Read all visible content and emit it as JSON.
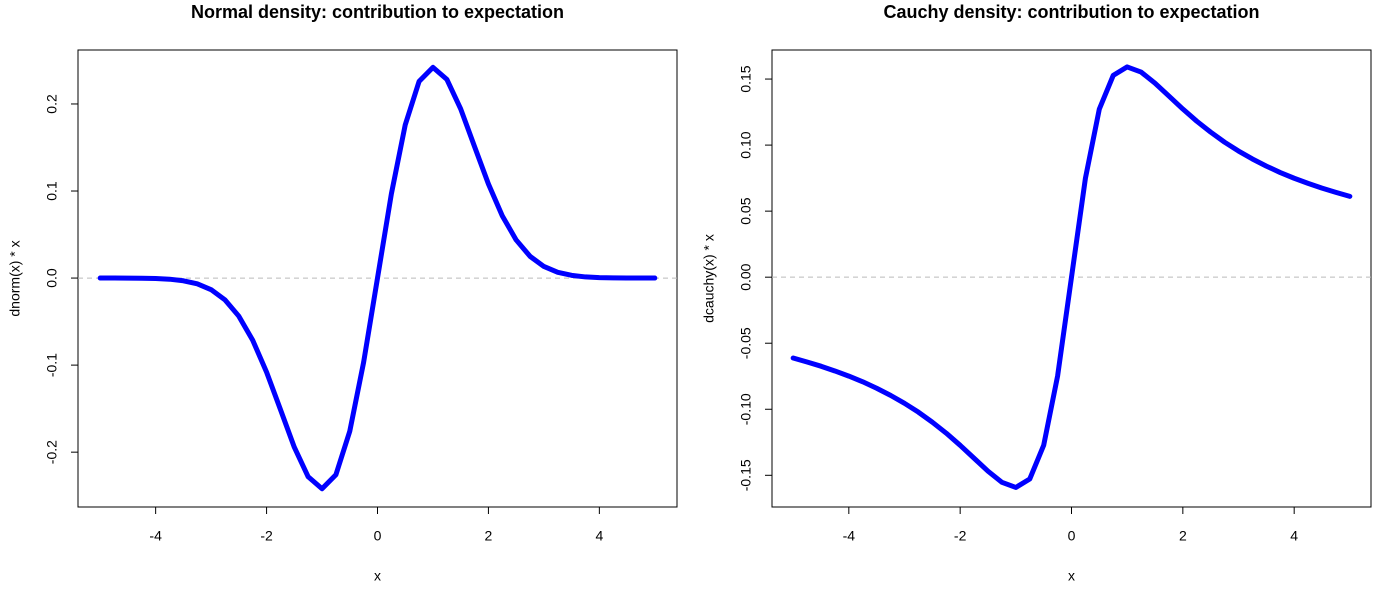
{
  "chart_data": [
    {
      "type": "line",
      "title": "Normal density: contribution to expectation",
      "x_label": "x",
      "y_label": "dnorm(x) * x",
      "x": [
        -5,
        -4.75,
        -4.5,
        -4.25,
        -4,
        -3.75,
        -3.5,
        -3.25,
        -3,
        -2.75,
        -2.5,
        -2.25,
        -2,
        -1.75,
        -1.5,
        -1.25,
        -1,
        -0.75,
        -0.5,
        -0.25,
        0,
        0.25,
        0.5,
        0.75,
        1,
        1.25,
        1.5,
        1.75,
        2,
        2.25,
        2.5,
        2.75,
        3,
        3.25,
        3.5,
        3.75,
        4,
        4.25,
        4.5,
        4.75,
        5
      ],
      "series": [
        {
          "color": "#0000ff",
          "values": [
            0,
            0,
            -0.0001,
            -0.0002,
            -0.0005,
            -0.0013,
            -0.0031,
            -0.0066,
            -0.0133,
            -0.025,
            -0.0438,
            -0.0714,
            -0.108,
            -0.151,
            -0.1943,
            -0.2283,
            -0.242,
            -0.2259,
            -0.176,
            -0.0967,
            0,
            0.0967,
            0.176,
            0.2259,
            0.242,
            0.2283,
            0.1943,
            0.151,
            0.108,
            0.0714,
            0.0438,
            0.025,
            0.0133,
            0.0066,
            0.0031,
            0.0013,
            0.0005,
            0.0002,
            0.0001,
            0,
            0
          ]
        }
      ],
      "xlim": [
        -5.4,
        5.4
      ],
      "xticks": [
        -4,
        -2,
        0,
        2,
        4
      ],
      "ylim": [
        -0.263,
        0.262
      ],
      "yticks": [
        -0.2,
        -0.1,
        {
          "value": 0,
          "label": "0.0"
        },
        0.1,
        0.2
      ],
      "reference_line": 0
    },
    {
      "type": "line",
      "title": "Cauchy density: contribution to expectation",
      "x_label": "x",
      "y_label": "dcauchy(x) * x",
      "x": [
        -5,
        -4.75,
        -4.5,
        -4.25,
        -4,
        -3.75,
        -3.5,
        -3.25,
        -3,
        -2.75,
        -2.5,
        -2.25,
        -2,
        -1.75,
        -1.5,
        -1.25,
        -1,
        -0.75,
        -0.5,
        -0.25,
        0,
        0.25,
        0.5,
        0.75,
        1,
        1.25,
        1.5,
        1.75,
        2,
        2.25,
        2.5,
        2.75,
        3,
        3.25,
        3.5,
        3.75,
        4,
        4.25,
        4.5,
        4.75,
        5
      ],
      "series": [
        {
          "color": "#0000ff",
          "values": [
            -0.0612,
            -0.0642,
            -0.0674,
            -0.071,
            -0.0749,
            -0.0792,
            -0.0841,
            -0.0895,
            -0.0955,
            -0.1022,
            -0.1098,
            -0.1181,
            -0.1273,
            -0.1371,
            -0.1469,
            -0.1553,
            -0.1592,
            -0.1528,
            -0.1273,
            -0.0749,
            0,
            0.0749,
            0.1273,
            0.1528,
            0.1592,
            0.1553,
            0.1469,
            0.1371,
            0.1273,
            0.1181,
            0.1098,
            0.1022,
            0.0955,
            0.0895,
            0.0841,
            0.0792,
            0.0749,
            0.071,
            0.0674,
            0.0642,
            0.0612
          ]
        }
      ],
      "xlim": [
        -5.38,
        5.38
      ],
      "xticks": [
        -4,
        -2,
        0,
        2,
        4
      ],
      "ylim": [
        -0.174,
        0.172
      ],
      "yticks": [
        -0.15,
        {
          "value": -0.1,
          "label": "-0.10"
        },
        -0.05,
        {
          "value": 0,
          "label": "0.00"
        },
        0.05,
        {
          "value": 0.1,
          "label": "0.10"
        },
        0.15
      ],
      "reference_line": 0
    }
  ]
}
